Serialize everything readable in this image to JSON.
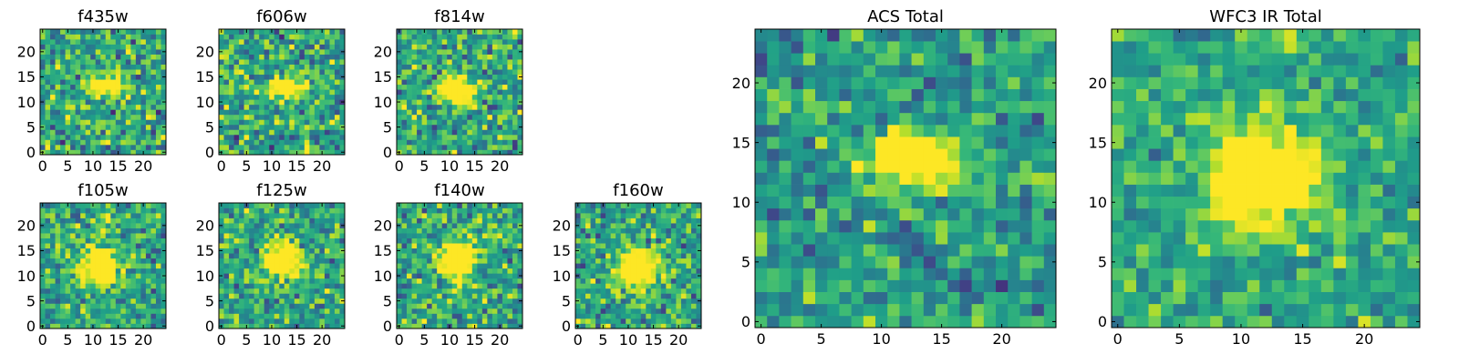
{
  "chart_data": [
    {
      "type": "heatmap",
      "title": "f435w",
      "grid_size": 25,
      "colormap": "viridis",
      "x_ticks": [
        0,
        5,
        10,
        15,
        20
      ],
      "y_ticks": [
        0,
        5,
        10,
        15,
        20
      ],
      "xlim": [
        -0.5,
        24.5
      ],
      "ylim": [
        -0.5,
        24.5
      ],
      "source_center": [
        12.5,
        13
      ],
      "source_sigma": [
        2.2,
        1.3
      ],
      "source_peak": 0.85,
      "background_level": 0.6,
      "noise_amplitude": 0.26
    },
    {
      "type": "heatmap",
      "title": "f606w",
      "grid_size": 25,
      "colormap": "viridis",
      "x_ticks": [
        0,
        5,
        10,
        15,
        20
      ],
      "y_ticks": [
        0,
        5,
        10,
        15,
        20
      ],
      "xlim": [
        -0.5,
        24.5
      ],
      "ylim": [
        -0.5,
        24.5
      ],
      "source_center": [
        12.5,
        13
      ],
      "source_sigma": [
        2.4,
        1.4
      ],
      "source_peak": 0.85,
      "background_level": 0.6,
      "noise_amplitude": 0.26
    },
    {
      "type": "heatmap",
      "title": "f814w",
      "grid_size": 25,
      "colormap": "viridis",
      "x_ticks": [
        0,
        5,
        10,
        15,
        20
      ],
      "y_ticks": [
        0,
        5,
        10,
        15,
        20
      ],
      "xlim": [
        -0.5,
        24.5
      ],
      "ylim": [
        -0.5,
        24.5
      ],
      "source_center": [
        11.5,
        12.5
      ],
      "source_sigma": [
        2.4,
        1.6
      ],
      "source_peak": 0.85,
      "background_level": 0.6,
      "noise_amplitude": 0.26
    },
    {
      "type": "heatmap",
      "title": "f105w",
      "grid_size": 25,
      "colormap": "viridis",
      "x_ticks": [
        0,
        5,
        10,
        15,
        20
      ],
      "y_ticks": [
        0,
        5,
        10,
        15,
        20
      ],
      "xlim": [
        -0.5,
        24.5
      ],
      "ylim": [
        -0.5,
        24.5
      ],
      "source_center": [
        11,
        12
      ],
      "source_sigma": [
        2.6,
        2.4
      ],
      "source_peak": 0.9,
      "background_level": 0.6,
      "noise_amplitude": 0.24
    },
    {
      "type": "heatmap",
      "title": "f125w",
      "grid_size": 25,
      "colormap": "viridis",
      "x_ticks": [
        0,
        5,
        10,
        15,
        20
      ],
      "y_ticks": [
        0,
        5,
        10,
        15,
        20
      ],
      "xlim": [
        -0.5,
        24.5
      ],
      "ylim": [
        -0.5,
        24.5
      ],
      "source_center": [
        12,
        13
      ],
      "source_sigma": [
        2.6,
        2.4
      ],
      "source_peak": 0.9,
      "background_level": 0.6,
      "noise_amplitude": 0.24
    },
    {
      "type": "heatmap",
      "title": "f140w",
      "grid_size": 25,
      "colormap": "viridis",
      "x_ticks": [
        0,
        5,
        10,
        15,
        20
      ],
      "y_ticks": [
        0,
        5,
        10,
        15,
        20
      ],
      "xlim": [
        -0.5,
        24.5
      ],
      "ylim": [
        -0.5,
        24.5
      ],
      "source_center": [
        11.5,
        13
      ],
      "source_sigma": [
        2.4,
        2.4
      ],
      "source_peak": 0.9,
      "background_level": 0.6,
      "noise_amplitude": 0.24
    },
    {
      "type": "heatmap",
      "title": "f160w",
      "grid_size": 25,
      "colormap": "viridis",
      "x_ticks": [
        0,
        5,
        10,
        15,
        20
      ],
      "y_ticks": [
        0,
        5,
        10,
        15,
        20
      ],
      "xlim": [
        -0.5,
        24.5
      ],
      "ylim": [
        -0.5,
        24.5
      ],
      "source_center": [
        12,
        11.5
      ],
      "source_sigma": [
        2.6,
        2.4
      ],
      "source_peak": 0.9,
      "background_level": 0.6,
      "noise_amplitude": 0.24
    },
    {
      "type": "heatmap",
      "title": "ACS Total",
      "grid_size": 25,
      "colormap": "viridis",
      "x_ticks": [
        0,
        5,
        10,
        15,
        20
      ],
      "y_ticks": [
        0,
        5,
        10,
        15,
        20
      ],
      "xlim": [
        -0.5,
        24.5
      ],
      "ylim": [
        -0.5,
        24.5
      ],
      "source_center": [
        12.5,
        13.5
      ],
      "source_sigma": [
        3.0,
        1.6
      ],
      "source_peak": 0.85,
      "background_level": 0.55,
      "noise_amplitude": 0.2
    },
    {
      "type": "heatmap",
      "title": "WFC3 IR Total",
      "grid_size": 25,
      "colormap": "viridis",
      "x_ticks": [
        0,
        5,
        10,
        15,
        20
      ],
      "y_ticks": [
        0,
        5,
        10,
        15,
        20
      ],
      "xlim": [
        -0.5,
        24.5
      ],
      "ylim": [
        -0.5,
        24.5
      ],
      "source_center": [
        11.5,
        12
      ],
      "source_sigma": [
        2.8,
        2.8
      ],
      "source_peak": 0.9,
      "background_level": 0.6,
      "noise_amplitude": 0.18
    }
  ],
  "colors": {
    "viridis_stops": [
      "#440154",
      "#482878",
      "#3e4989",
      "#31688e",
      "#26828e",
      "#1f9e89",
      "#35b779",
      "#6ece58",
      "#b5de2b",
      "#fde725"
    ],
    "axes_frame": "#000000",
    "background": "#ffffff"
  }
}
